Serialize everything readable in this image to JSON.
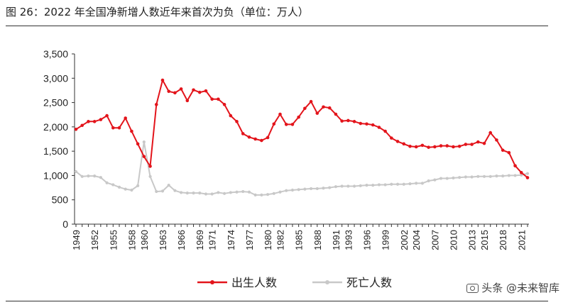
{
  "header": {
    "title": "图 26：2022 年全国净新增人数近年来首次为负（单位：万人）"
  },
  "watermark": {
    "text": "头条 @未来智库",
    "icon": "camera-icon"
  },
  "chart_data": {
    "type": "line",
    "title": "图 26：2022 年全国净新增人数近年来首次为负（单位：万人）",
    "xlabel": "",
    "ylabel": "",
    "ylim": [
      0,
      3500
    ],
    "yticks": [
      0,
      500,
      1000,
      1500,
      2000,
      2500,
      3000,
      3500
    ],
    "ytick_labels": [
      "0",
      "500",
      "1,000",
      "1,500",
      "2,000",
      "2,500",
      "3,000",
      "3,500"
    ],
    "xticks": [
      1949,
      1952,
      1955,
      1958,
      1960,
      1963,
      1966,
      1969,
      1971,
      1974,
      1977,
      1980,
      1982,
      1985,
      1988,
      1991,
      1993,
      1996,
      1999,
      2002,
      2004,
      2007,
      2010,
      2013,
      2015,
      2018,
      2021
    ],
    "grid": false,
    "legend_position": "bottom",
    "x": [
      1949,
      1950,
      1951,
      1952,
      1953,
      1954,
      1955,
      1956,
      1957,
      1958,
      1959,
      1960,
      1961,
      1962,
      1963,
      1964,
      1965,
      1966,
      1967,
      1968,
      1969,
      1970,
      1971,
      1972,
      1973,
      1974,
      1975,
      1976,
      1977,
      1978,
      1979,
      1980,
      1981,
      1982,
      1983,
      1984,
      1985,
      1986,
      1987,
      1988,
      1989,
      1990,
      1991,
      1992,
      1993,
      1994,
      1995,
      1996,
      1997,
      1998,
      1999,
      2000,
      2001,
      2002,
      2003,
      2004,
      2005,
      2006,
      2007,
      2008,
      2009,
      2010,
      2011,
      2012,
      2013,
      2014,
      2015,
      2016,
      2017,
      2018,
      2019,
      2020,
      2021,
      2022
    ],
    "series": [
      {
        "name": "出生人数",
        "color": "#e3141b",
        "values": [
          1950,
          2030,
          2110,
          2110,
          2150,
          2230,
          1980,
          1980,
          2180,
          1910,
          1650,
          1390,
          1190,
          2460,
          2960,
          2730,
          2700,
          2780,
          2540,
          2760,
          2710,
          2740,
          2570,
          2570,
          2460,
          2230,
          2110,
          1860,
          1790,
          1750,
          1720,
          1780,
          2060,
          2260,
          2050,
          2050,
          2200,
          2380,
          2520,
          2280,
          2410,
          2390,
          2260,
          2120,
          2130,
          2110,
          2070,
          2060,
          2040,
          1990,
          1910,
          1770,
          1700,
          1650,
          1600,
          1590,
          1620,
          1580,
          1590,
          1610,
          1610,
          1590,
          1600,
          1640,
          1640,
          1690,
          1660,
          1880,
          1730,
          1520,
          1470,
          1200,
          1060,
          956
        ]
      },
      {
        "name": "死亡人数",
        "color": "#c8c8c8",
        "values": [
          1080,
          980,
          990,
          990,
          960,
          850,
          810,
          760,
          720,
          700,
          790,
          1690,
          980,
          670,
          680,
          800,
          690,
          650,
          640,
          640,
          640,
          620,
          620,
          650,
          630,
          650,
          660,
          670,
          660,
          600,
          600,
          610,
          630,
          660,
          690,
          700,
          710,
          720,
          730,
          730,
          740,
          750,
          770,
          780,
          780,
          780,
          790,
          800,
          800,
          810,
          810,
          820,
          820,
          820,
          830,
          840,
          840,
          890,
          910,
          940,
          940,
          950,
          960,
          970,
          970,
          980,
          980,
          980,
          990,
          990,
          1000,
          1000,
          1010,
          1040
        ]
      }
    ]
  }
}
